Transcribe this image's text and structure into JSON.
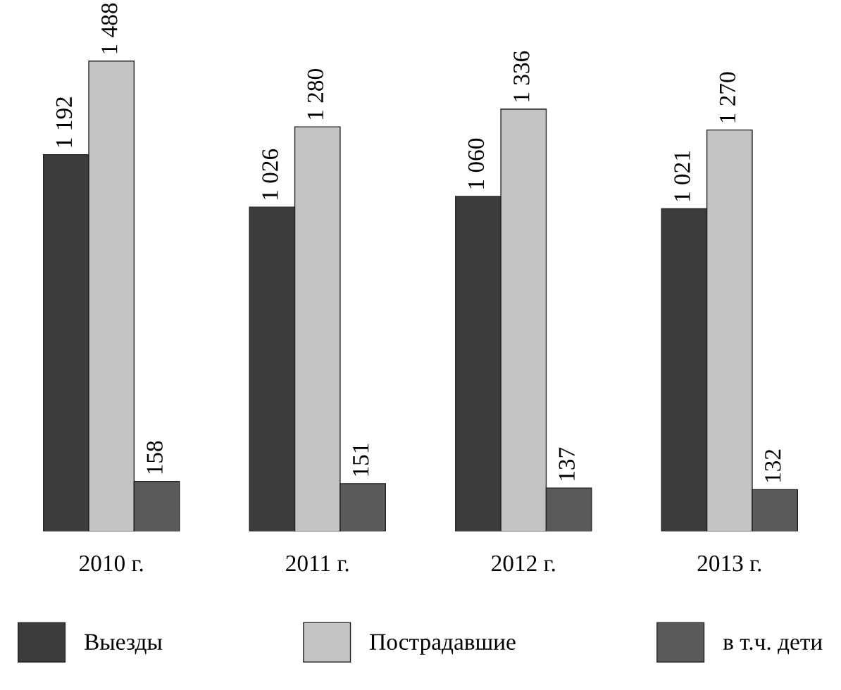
{
  "chart_data": {
    "type": "bar",
    "categories": [
      "2010 г.",
      "2011 г.",
      "2012 г.",
      "2013 г."
    ],
    "series": [
      {
        "name": "Выезды",
        "color": "#3c3c3c",
        "values": [
          1192,
          1026,
          1060,
          1021
        ],
        "value_labels": [
          "1 192",
          "1 026",
          "1 060",
          "1 021"
        ]
      },
      {
        "name": "Пострадавшие",
        "color": "#c4c4c4",
        "values": [
          1488,
          1280,
          1336,
          1270
        ],
        "value_labels": [
          "1 488",
          "1 280",
          "1 336",
          "1 270"
        ]
      },
      {
        "name": "в т.ч. дети",
        "color": "#5a5a5a",
        "values": [
          158,
          151,
          137,
          132
        ],
        "value_labels": [
          "158",
          "151",
          "137",
          "132"
        ]
      }
    ],
    "legend": "bottom",
    "grid": false
  }
}
